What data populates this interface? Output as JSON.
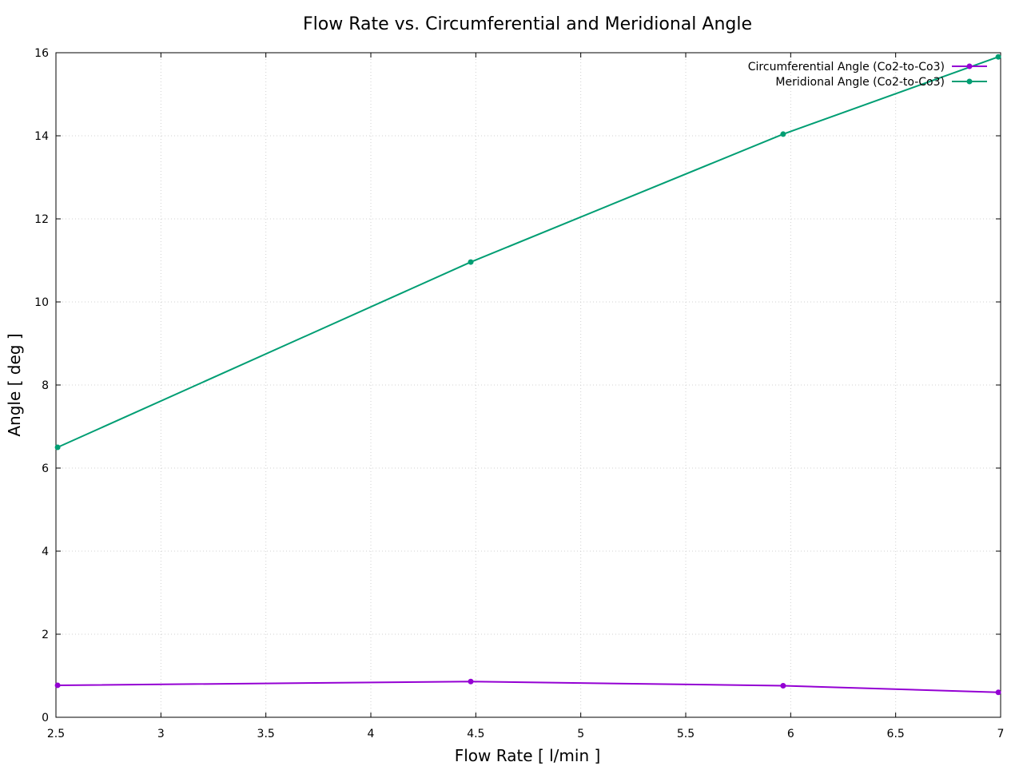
{
  "chart_data": {
    "type": "line",
    "title": "Flow Rate vs. Circumferential and Meridional Angle",
    "xlabel": "Flow Rate [ l/min ]",
    "ylabel": "Angle [ deg ]",
    "xlim": [
      2.5,
      7
    ],
    "ylim": [
      0,
      16
    ],
    "xticks": [
      "2.5",
      "3",
      "3.5",
      "4",
      "4.5",
      "5",
      "5.5",
      "6",
      "6.5",
      "7"
    ],
    "yticks": [
      "0",
      "2",
      "4",
      "6",
      "8",
      "10",
      "12",
      "14",
      "16"
    ],
    "grid": true,
    "legend_position": "top-right",
    "series": [
      {
        "name": "Circumferential Angle (Co2-to-Co3)",
        "color": "#9400d3",
        "x": [
          2.508,
          4.476,
          5.964,
          6.989
        ],
        "y": [
          0.77,
          0.86,
          0.76,
          0.6
        ]
      },
      {
        "name": "Meridional Angle (Co2-to-Co3)",
        "color": "#009e73",
        "x": [
          2.508,
          4.476,
          5.964,
          6.989
        ],
        "y": [
          6.5,
          10.96,
          14.04,
          15.9
        ]
      }
    ]
  }
}
